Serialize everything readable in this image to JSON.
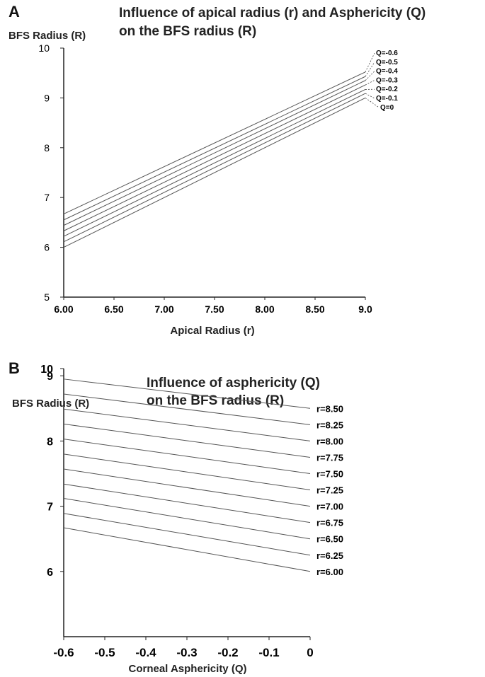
{
  "panel_a": {
    "letter": "A",
    "title_line1": "Influence of apical radius (r) and Asphericity (Q)",
    "title_line2": "on the BFS radius (R)"
  },
  "panel_b": {
    "letter": "B",
    "title_line1": "Influence of asphericity (Q)",
    "title_line2": "on the BFS radius (R)"
  },
  "chart_data": [
    {
      "type": "line",
      "title": "Influence of apical radius (r) and Asphericity (Q) on the BFS radius (R)",
      "xlabel": "Apical Radius (r)",
      "ylabel": "BFS Radius (R)",
      "xlim": [
        6.0,
        9.0
      ],
      "ylim": [
        5,
        10
      ],
      "x_ticks": [
        "6.00",
        "6.50",
        "7.00",
        "7.50",
        "8.00",
        "8.50",
        "9.0"
      ],
      "y_ticks": [
        "5",
        "6",
        "7",
        "8",
        "9",
        "10"
      ],
      "x": [
        6.0,
        9.0
      ],
      "legend_position": "right end of lines",
      "grid": false,
      "series": [
        {
          "name": "Q=-0.6",
          "values": [
            6.67,
            9.52
          ]
        },
        {
          "name": "Q=-0.5",
          "values": [
            6.55,
            9.43
          ]
        },
        {
          "name": "Q=-0.4",
          "values": [
            6.44,
            9.35
          ]
        },
        {
          "name": "Q=-0.3",
          "values": [
            6.33,
            9.26
          ]
        },
        {
          "name": "Q=-0.2",
          "values": [
            6.22,
            9.17
          ]
        },
        {
          "name": "Q=-0.1",
          "values": [
            6.11,
            9.09
          ]
        },
        {
          "name": "Q=0",
          "values": [
            6.0,
            9.0
          ]
        }
      ]
    },
    {
      "type": "line",
      "title": "Influence of asphericity (Q) on the BFS radius (R)",
      "xlabel": "Corneal Asphericity (Q)",
      "ylabel": "BFS Radius (R)",
      "xlim": [
        -0.6,
        0
      ],
      "ylim": [
        5,
        10
      ],
      "x_ticks": [
        "-0.6",
        "-0.5",
        "-0.4",
        "-0.3",
        "-0.2",
        "-0.1",
        "0"
      ],
      "y_ticks": [
        "6",
        "7",
        "8",
        "9",
        "10"
      ],
      "x": [
        -0.6,
        0
      ],
      "legend_position": "right end of lines",
      "grid": false,
      "series": [
        {
          "name": "r=8.50",
          "values": [
            8.95,
            8.5
          ]
        },
        {
          "name": "r=8.25",
          "values": [
            8.72,
            8.25
          ]
        },
        {
          "name": "r=8.00",
          "values": [
            8.49,
            8.0
          ]
        },
        {
          "name": "r=7.75",
          "values": [
            8.26,
            7.75
          ]
        },
        {
          "name": "r=7.50",
          "values": [
            8.03,
            7.5
          ]
        },
        {
          "name": "r=7.25",
          "values": [
            7.8,
            7.25
          ]
        },
        {
          "name": "r=7.00",
          "values": [
            7.57,
            7.0
          ]
        },
        {
          "name": "r=6.75",
          "values": [
            7.34,
            6.75
          ]
        },
        {
          "name": "r=6.50",
          "values": [
            7.12,
            6.5
          ]
        },
        {
          "name": "r=6.25",
          "values": [
            6.89,
            6.25
          ]
        },
        {
          "name": "r=6.00",
          "values": [
            6.67,
            6.0
          ]
        }
      ]
    }
  ]
}
